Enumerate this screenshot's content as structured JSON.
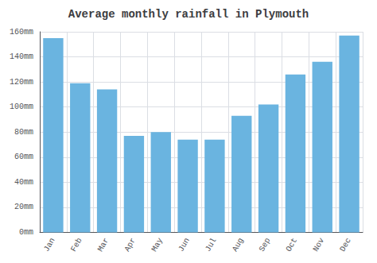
{
  "chart_data": {
    "type": "bar",
    "title": "Average monthly rainfall in Plymouth",
    "categories": [
      "Jan",
      "Feb",
      "Mar",
      "Apr",
      "May",
      "Jun",
      "Jul",
      "Aug",
      "Sep",
      "Oct",
      "Nov",
      "Dec"
    ],
    "values": [
      155,
      119,
      114,
      77,
      80,
      74,
      74,
      93,
      102,
      126,
      136,
      157
    ],
    "color": "#6ab4e0",
    "ylim": [
      0,
      160
    ],
    "yticks": [
      {
        "value": 0,
        "label": "0mm"
      },
      {
        "value": 20,
        "label": "20mm"
      },
      {
        "value": 40,
        "label": "40mm"
      },
      {
        "value": 60,
        "label": "60mm"
      },
      {
        "value": 80,
        "label": "80mm"
      },
      {
        "value": 100,
        "label": "100mm"
      },
      {
        "value": 120,
        "label": "120mm"
      },
      {
        "value": 140,
        "label": "140mm"
      },
      {
        "value": 160,
        "label": "160mm"
      }
    ],
    "grid": true
  }
}
